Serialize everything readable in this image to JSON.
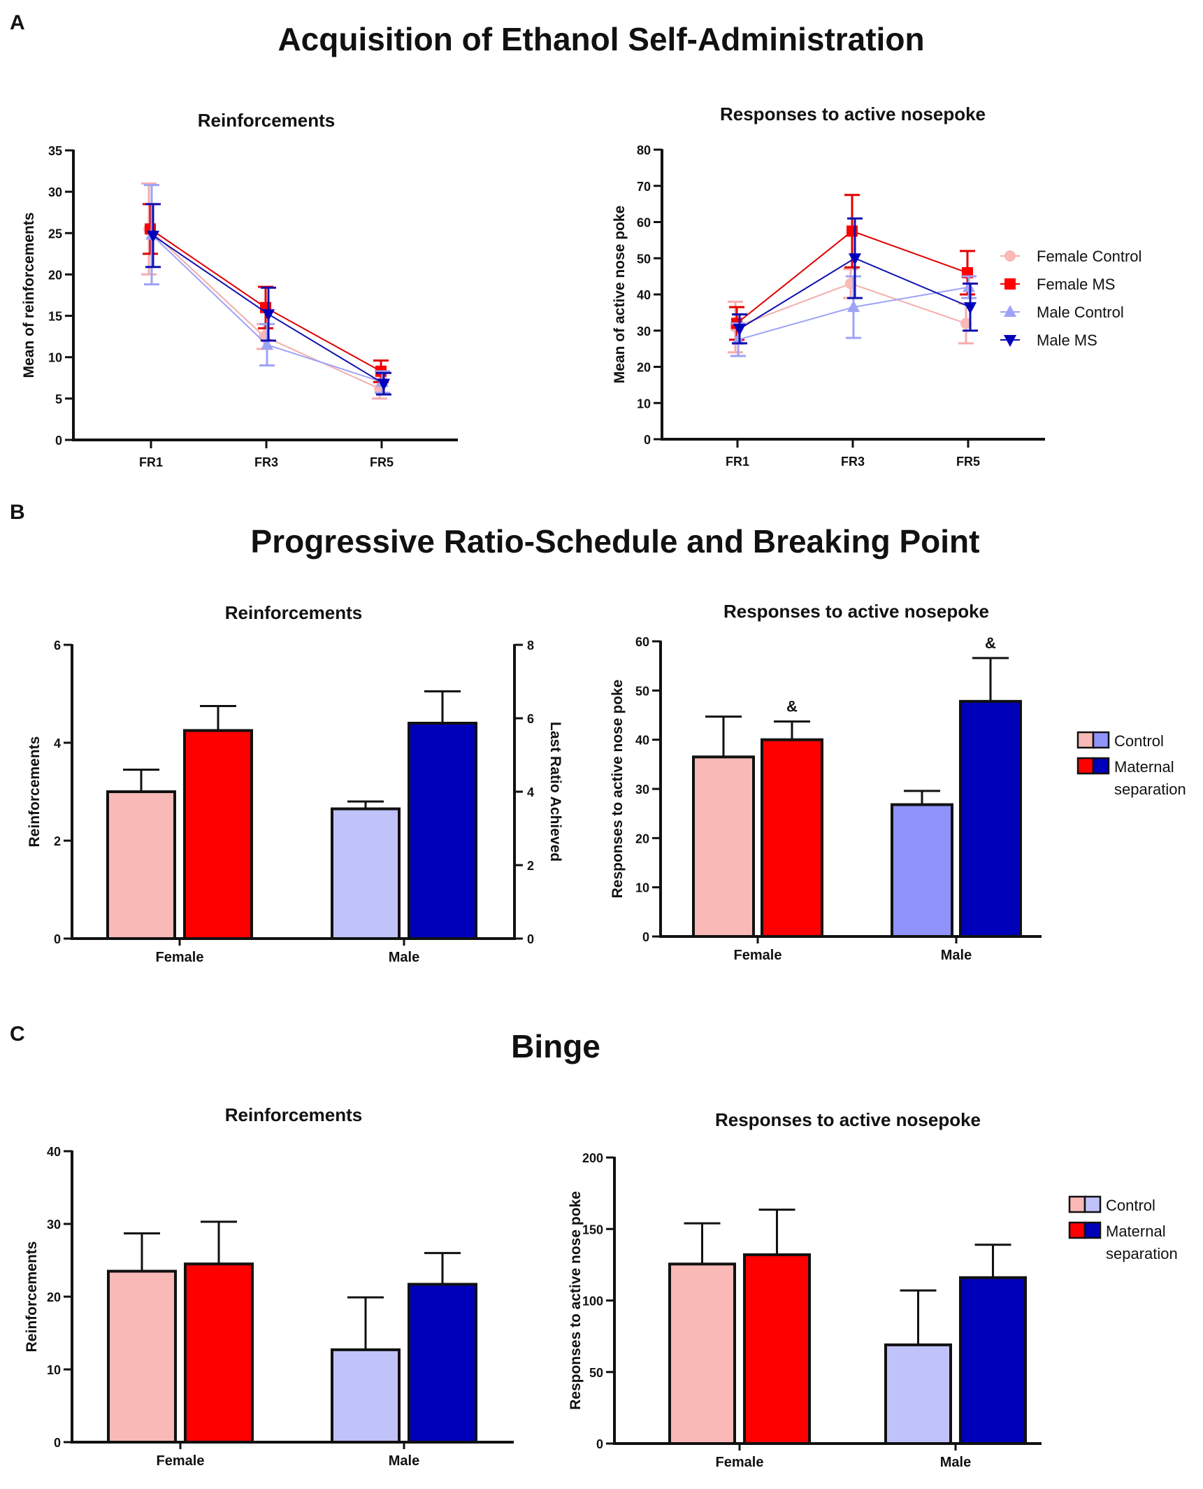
{
  "figure": {
    "sections": [
      {
        "letter": "A",
        "title": "Acquisition of Ethanol Self-Administration"
      },
      {
        "letter": "B",
        "title": "Progressive Ratio-Schedule and Breaking Point"
      },
      {
        "letter": "C",
        "title": "Binge"
      }
    ]
  },
  "colors": {
    "female_control": "#F9B9B7",
    "female_ms": "#FF0000",
    "male_control": "#C0C2FA",
    "male_control_b2": "#8F93FA",
    "male_ms": "#0000BB",
    "line_female_control": "#F4AEAD",
    "line_male_control": "#9EA3F5",
    "line_female_ms": "#E00000",
    "line_male_ms": "#1010B0"
  },
  "chart_data": [
    {
      "id": "A1",
      "type": "line",
      "title": "Reinforcements",
      "xlabel": "",
      "ylabel": "Mean of reinforcements",
      "categories": [
        "FR1",
        "FR3",
        "FR5"
      ],
      "ylim": [
        0,
        35
      ],
      "yticks": [
        "0",
        "5",
        "10",
        "15",
        "20",
        "25",
        "30",
        "35"
      ],
      "series": [
        {
          "name": "Female Control",
          "values": [
            25.5,
            12.5,
            6.2
          ],
          "err": [
            5.5,
            1.5,
            1.2
          ]
        },
        {
          "name": "Female MS",
          "values": [
            25.5,
            16.0,
            8.3
          ],
          "err": [
            3.0,
            2.5,
            1.3
          ]
        },
        {
          "name": "Male Control",
          "values": [
            24.8,
            11.5,
            7.0
          ],
          "err": [
            6.0,
            2.5,
            1.3
          ]
        },
        {
          "name": "Male MS",
          "values": [
            24.7,
            15.2,
            6.8
          ],
          "err": [
            3.8,
            3.2,
            1.3
          ]
        }
      ]
    },
    {
      "id": "A2",
      "type": "line",
      "title": "Responses to active nosepoke",
      "xlabel": "",
      "ylabel": "Mean of active nose poke",
      "categories": [
        "FR1",
        "FR3",
        "FR5"
      ],
      "ylim": [
        0,
        80
      ],
      "yticks": [
        "0",
        "10",
        "20",
        "30",
        "40",
        "50",
        "60",
        "70",
        "80"
      ],
      "legend": [
        "Female Control",
        "Female MS",
        "Male Control",
        "Male MS"
      ],
      "series": [
        {
          "name": "Female Control",
          "values": [
            31.0,
            43.0,
            32.0
          ],
          "err": [
            7.0,
            4.0,
            5.5
          ]
        },
        {
          "name": "Female MS",
          "values": [
            32.0,
            57.5,
            46.0
          ],
          "err": [
            4.5,
            10.0,
            6.0
          ]
        },
        {
          "name": "Male Control",
          "values": [
            27.5,
            36.5,
            42.0
          ],
          "err": [
            4.5,
            8.5,
            3.0
          ]
        },
        {
          "name": "Male MS",
          "values": [
            30.5,
            50.0,
            36.5
          ],
          "err": [
            4.0,
            11.0,
            6.5
          ]
        }
      ]
    },
    {
      "id": "B1",
      "type": "bar",
      "title": "Reinforcements",
      "ylabel": "Reinforcements",
      "y2label": "Last Ratio Achieved",
      "categories": [
        "Female",
        "Male"
      ],
      "ylim": [
        0,
        6
      ],
      "yticks": [
        "0",
        "2",
        "4",
        "6"
      ],
      "y2lim": [
        0,
        8
      ],
      "y2ticks": [
        "0",
        "2",
        "4",
        "6",
        "8"
      ],
      "series": [
        {
          "name": "Control",
          "values": [
            3.0,
            2.65
          ],
          "err": [
            0.45,
            0.15
          ]
        },
        {
          "name": "Maternal separation",
          "values": [
            4.25,
            4.4
          ],
          "err": [
            0.5,
            0.65
          ]
        }
      ]
    },
    {
      "id": "B2",
      "type": "bar",
      "title": "Responses to active nosepoke",
      "ylabel": "Responses to active nose poke",
      "categories": [
        "Female",
        "Male"
      ],
      "ylim": [
        0,
        60
      ],
      "yticks": [
        "0",
        "10",
        "20",
        "30",
        "40",
        "50",
        "60"
      ],
      "legend": [
        "Control",
        "Maternal",
        "separation"
      ],
      "series": [
        {
          "name": "Control",
          "values": [
            36.5,
            26.8
          ],
          "err": [
            8.2,
            2.8
          ]
        },
        {
          "name": "Maternal separation",
          "values": [
            40.0,
            47.8
          ],
          "err": [
            3.7,
            8.8
          ]
        }
      ],
      "annotations": [
        {
          "text": "&",
          "category": "Female",
          "series": "Maternal separation"
        },
        {
          "text": "&",
          "category": "Male",
          "series": "Maternal separation"
        }
      ]
    },
    {
      "id": "C1",
      "type": "bar",
      "title": "Reinforcements",
      "ylabel": "Reinforcements",
      "categories": [
        "Female",
        "Male"
      ],
      "ylim": [
        0,
        40
      ],
      "yticks": [
        "0",
        "10",
        "20",
        "30",
        "40"
      ],
      "series": [
        {
          "name": "Control",
          "values": [
            23.5,
            12.7
          ],
          "err": [
            5.2,
            7.2
          ]
        },
        {
          "name": "Maternal separation",
          "values": [
            24.5,
            21.7
          ],
          "err": [
            5.8,
            4.3
          ]
        }
      ]
    },
    {
      "id": "C2",
      "type": "bar",
      "title": "Responses to active nosepoke",
      "ylabel": "Responses to active nose poke",
      "categories": [
        "Female",
        "Male"
      ],
      "ylim": [
        0,
        200
      ],
      "yticks": [
        "0",
        "50",
        "100",
        "150",
        "200"
      ],
      "legend": [
        "Control",
        "Maternal",
        "separation"
      ],
      "series": [
        {
          "name": "Control",
          "values": [
            125.5,
            69.0
          ],
          "err": [
            28.5,
            38.0
          ]
        },
        {
          "name": "Maternal separation",
          "values": [
            132.0,
            116.0
          ],
          "err": [
            31.5,
            23.0
          ]
        }
      ]
    }
  ]
}
